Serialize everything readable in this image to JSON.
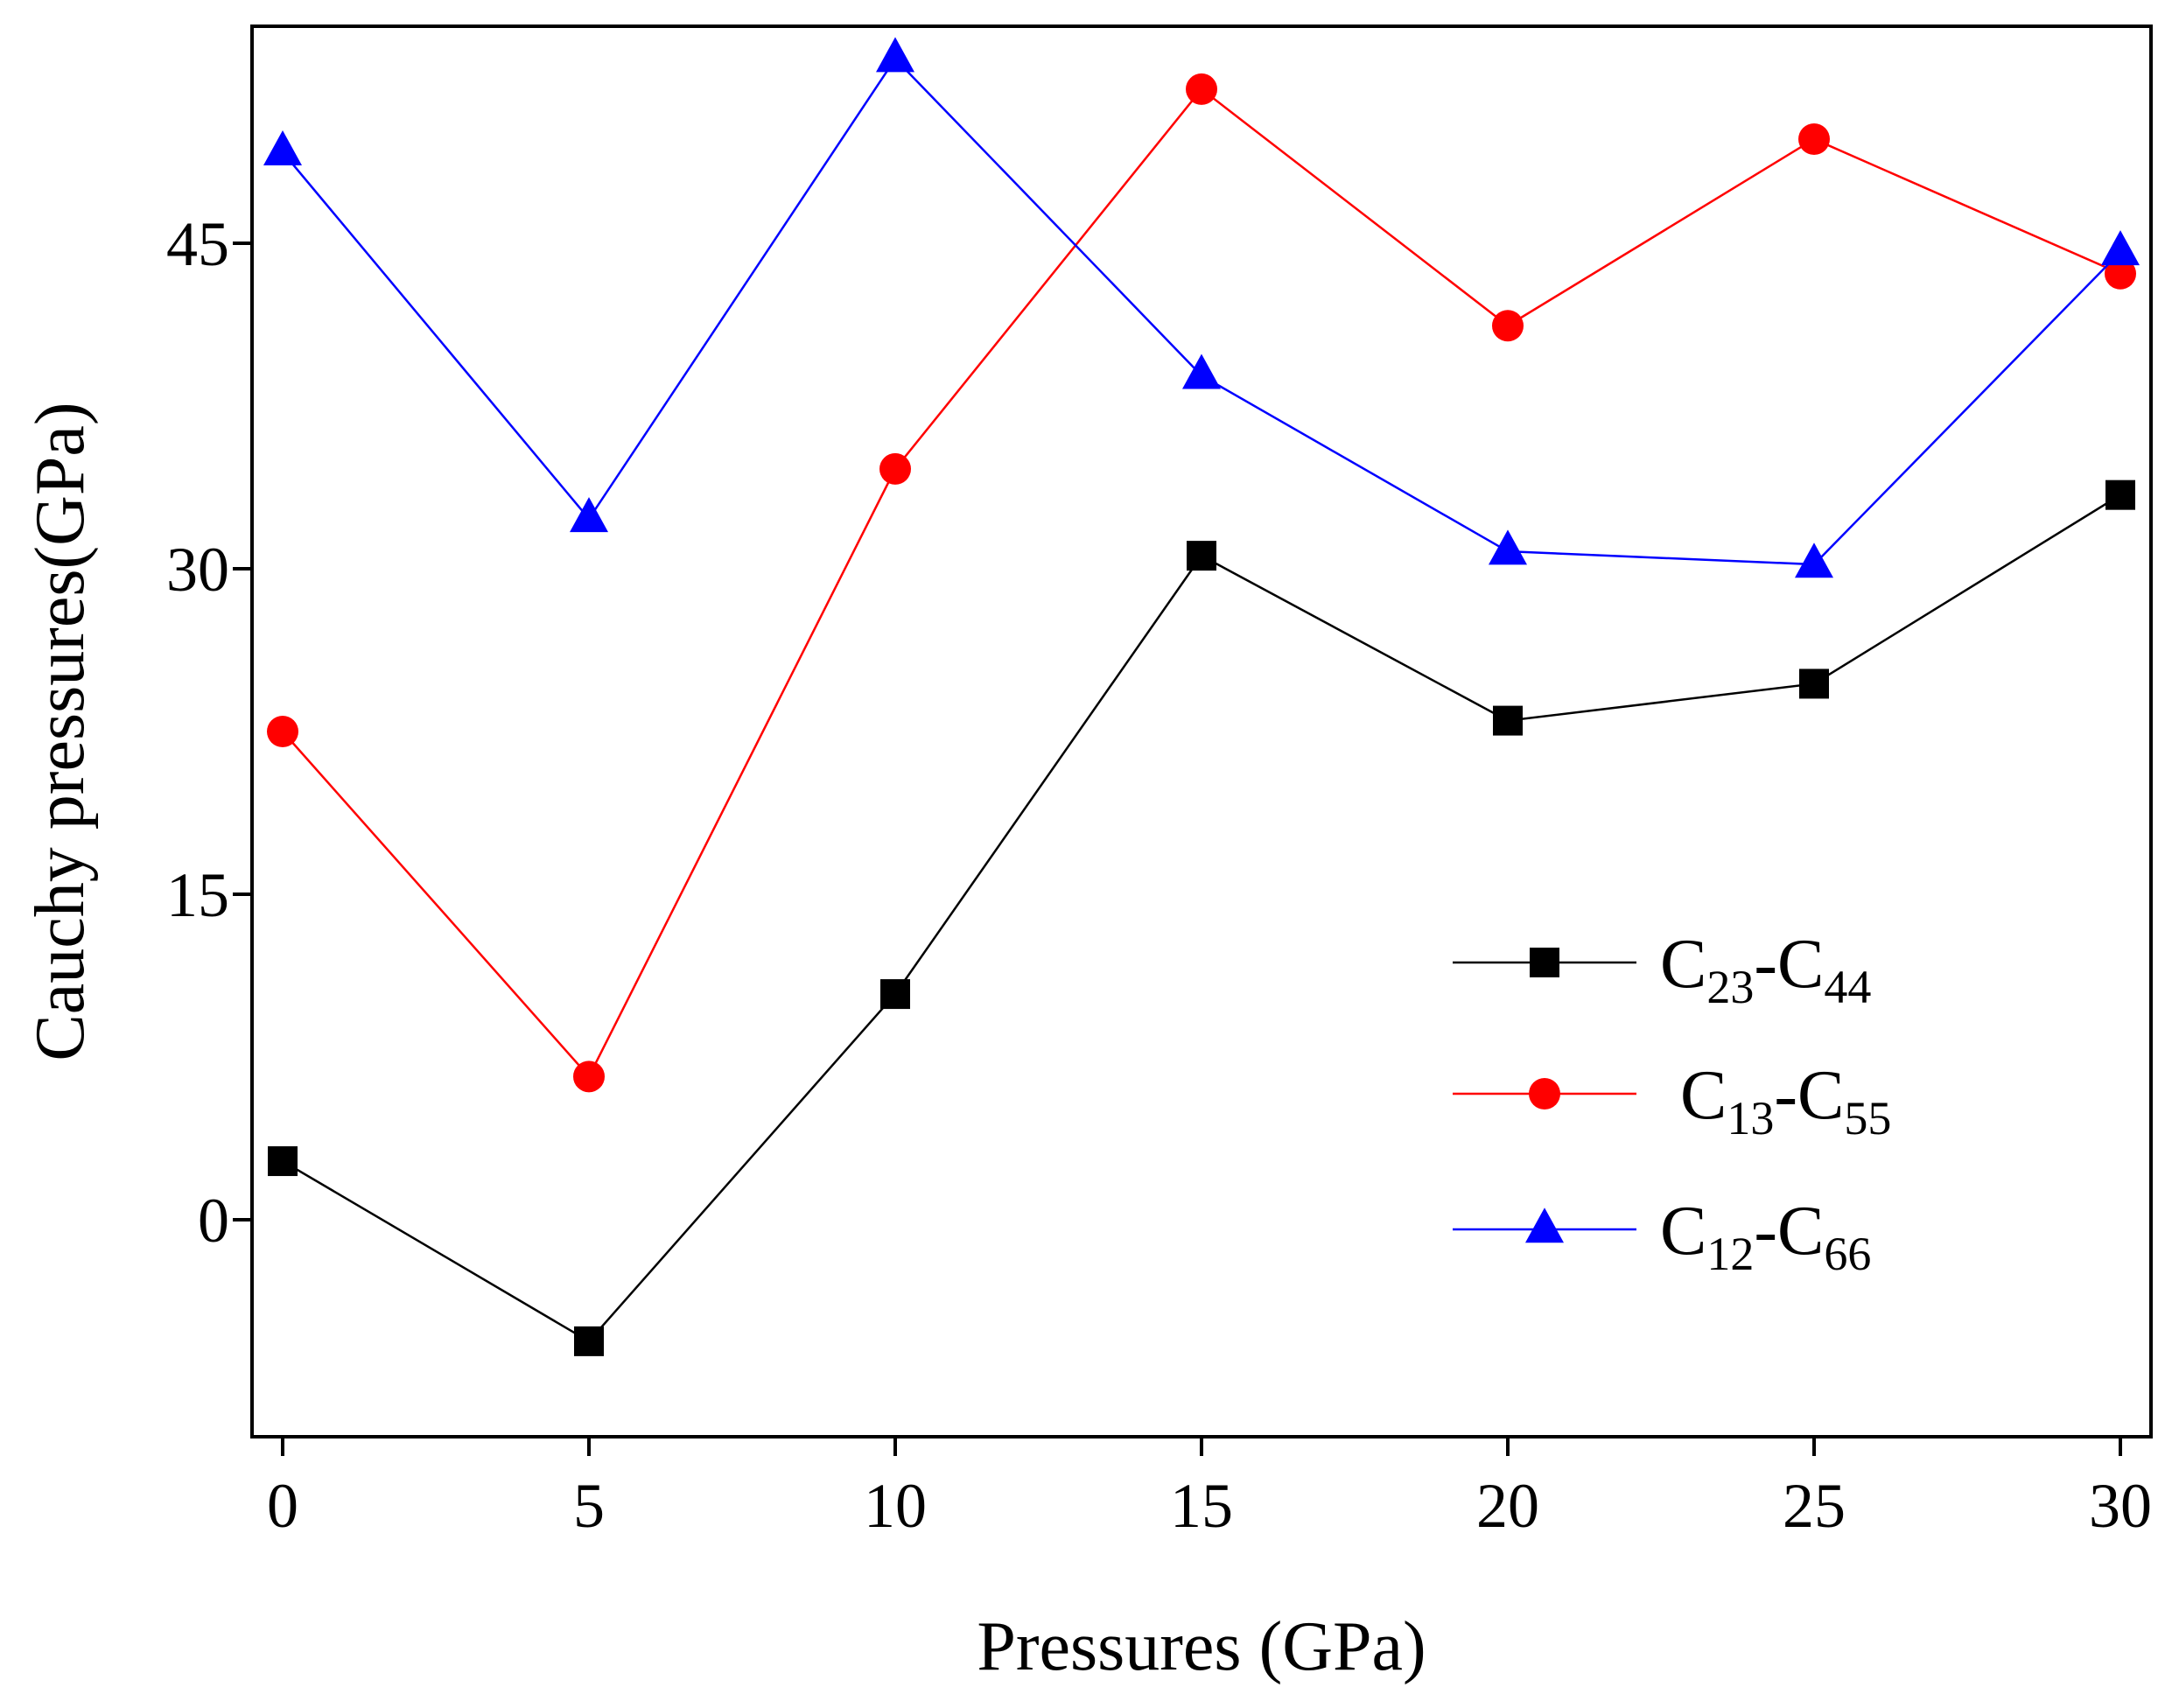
{
  "chart_data": {
    "type": "line",
    "title": "",
    "xlabel": "Pressures (GPa)",
    "ylabel": "Cauchy pressures(GPa)",
    "x": [
      0,
      5,
      10,
      15,
      20,
      25,
      30
    ],
    "xlim": [
      -0.5,
      30.5
    ],
    "ylim": [
      -10,
      55
    ],
    "x_ticks": [
      0,
      5,
      10,
      15,
      20,
      25,
      30
    ],
    "y_ticks": [
      0,
      15,
      30,
      45
    ],
    "grid": false,
    "legend_position": "right",
    "series": [
      {
        "name": "C23-C44",
        "label_main": "C",
        "label_sub1": "23",
        "label_dash": "-C",
        "label_sub2": "44",
        "color": "#000000",
        "marker": "square",
        "values": [
          2.7,
          -5.6,
          10.4,
          30.6,
          23.0,
          24.7,
          33.4
        ]
      },
      {
        "name": "C13-C55",
        "label_main": "C",
        "label_sub1": "13",
        "label_dash": "-C",
        "label_sub2": "55",
        "color": "#ff0000",
        "marker": "circle",
        "values": [
          22.5,
          6.6,
          34.6,
          52.1,
          41.2,
          49.8,
          43.6
        ]
      },
      {
        "name": "C12-C66",
        "label_main": "C",
        "label_sub1": "12",
        "label_dash": "-C",
        "label_sub2": "66",
        "color": "#0000ff",
        "marker": "triangle",
        "values": [
          49.2,
          32.3,
          53.5,
          38.9,
          30.8,
          30.2,
          44.6
        ]
      }
    ]
  }
}
